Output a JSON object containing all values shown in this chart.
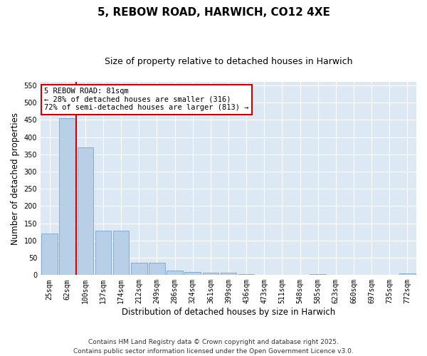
{
  "title": "5, REBOW ROAD, HARWICH, CO12 4XE",
  "subtitle": "Size of property relative to detached houses in Harwich",
  "xlabel": "Distribution of detached houses by size in Harwich",
  "ylabel": "Number of detached properties",
  "categories": [
    "25sqm",
    "62sqm",
    "100sqm",
    "137sqm",
    "174sqm",
    "212sqm",
    "249sqm",
    "286sqm",
    "324sqm",
    "361sqm",
    "399sqm",
    "436sqm",
    "473sqm",
    "511sqm",
    "548sqm",
    "585sqm",
    "623sqm",
    "660sqm",
    "697sqm",
    "735sqm",
    "772sqm"
  ],
  "values": [
    120,
    455,
    370,
    128,
    128,
    35,
    35,
    13,
    9,
    6,
    6,
    2,
    0,
    0,
    0,
    2,
    0,
    0,
    0,
    0,
    4
  ],
  "bar_color": "#b8cfe8",
  "bar_edge_color": "#6699cc",
  "vline_color": "#cc0000",
  "vline_x_index": 1.5,
  "annotation_text": "5 REBOW ROAD: 81sqm\n← 28% of detached houses are smaller (316)\n72% of semi-detached houses are larger (813) →",
  "annotation_box_facecolor": "#ffffff",
  "annotation_box_edgecolor": "#cc0000",
  "ylim": [
    0,
    560
  ],
  "yticks": [
    0,
    50,
    100,
    150,
    200,
    250,
    300,
    350,
    400,
    450,
    500,
    550
  ],
  "footer": "Contains HM Land Registry data © Crown copyright and database right 2025.\nContains public sector information licensed under the Open Government Licence v3.0.",
  "fig_facecolor": "#ffffff",
  "plot_facecolor": "#dde8f5",
  "grid_color": "#ffffff",
  "title_fontsize": 11,
  "subtitle_fontsize": 9,
  "tick_fontsize": 7,
  "label_fontsize": 8.5,
  "footer_fontsize": 6.5,
  "annotation_fontsize": 7.5
}
